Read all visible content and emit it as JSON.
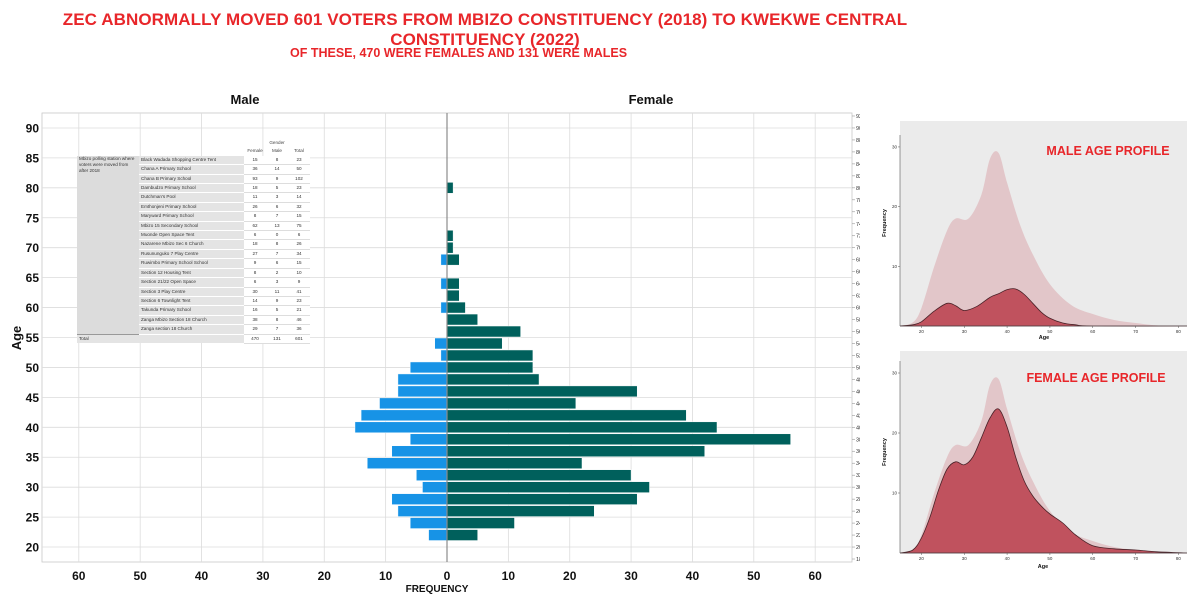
{
  "title": "ZEC ABNORMALLY MOVED 601 VOTERS FROM MBIZO CONSTITUENCY (2018) TO KWEKWE CENTRAL CONSTITUENCY (2022)",
  "subtitle": "OF THESE, 470 WERE FEMALES AND 131 WERE MALES",
  "colors": {
    "headline": "#e8262a",
    "male_bar": "#1793e6",
    "female_bar": "#00605c",
    "profile_fill": "#c0525e",
    "profile_light": "#e2c6c9",
    "panel_bg": "#ebebeb"
  },
  "stations_table": {
    "group_header": "Gender",
    "columns": [
      "Female",
      "Male",
      "Total"
    ],
    "side_label": "Mbizo polling station where voters were moved from after 2018",
    "rows": [
      {
        "name": "Black Wadada Shopping Centre Tent",
        "female": "15",
        "male": "8",
        "total": "23"
      },
      {
        "name": "Chana A Primary School",
        "female": "36",
        "male": "14",
        "total": "50"
      },
      {
        "name": "Chana B Primary School",
        "female": "93",
        "male": "9",
        "total": "102"
      },
      {
        "name": "Dambudzo Primary School",
        "female": "18",
        "male": "5",
        "total": "23"
      },
      {
        "name": "Dutchman's Pool",
        "female": "11",
        "male": "3",
        "total": "14"
      },
      {
        "name": "Emthonjeni Primary School",
        "female": "26",
        "male": "6",
        "total": "32"
      },
      {
        "name": "Maryward Primary School",
        "female": "8",
        "male": "7",
        "total": "15"
      },
      {
        "name": "Mbizo 15 Secondary School",
        "female": "62",
        "male": "13",
        "total": "75"
      },
      {
        "name": "Muonde Open Space Tent",
        "female": "6",
        "male": "0",
        "total": "6"
      },
      {
        "name": "Nazarene Mbizo Sec 6 Church",
        "female": "18",
        "male": "8",
        "total": "26"
      },
      {
        "name": "Rusununguko 7 Play Centre",
        "female": "27",
        "male": "7",
        "total": "34"
      },
      {
        "name": "Ruwimbo Primary School School",
        "female": "9",
        "male": "6",
        "total": "15"
      },
      {
        "name": "Section 12 Housing Tent",
        "female": "8",
        "male": "2",
        "total": "10"
      },
      {
        "name": "Section 21/22 Open Space",
        "female": "6",
        "male": "3",
        "total": "9"
      },
      {
        "name": "Section 3 Play Centre",
        "female": "30",
        "male": "11",
        "total": "41"
      },
      {
        "name": "Section 6 Townlight Tent",
        "female": "14",
        "male": "9",
        "total": "23"
      },
      {
        "name": "Takunda Primary School",
        "female": "16",
        "male": "5",
        "total": "21"
      },
      {
        "name": "Zanga Mbizo Section 18 Church",
        "female": "38",
        "male": "8",
        "total": "46"
      },
      {
        "name": "Zanga section 18 Church",
        "female": "29",
        "male": "7",
        "total": "36"
      }
    ],
    "total_label": "Total",
    "totals": {
      "female": "470",
      "male": "131",
      "total": "601"
    }
  },
  "chart_data": [
    {
      "type": "bar",
      "orientation": "horizontal-back-to-back",
      "title": "",
      "left_label": "Male",
      "right_label": "Female",
      "xlabel": "FREQUENCY",
      "ylabel": "Age",
      "xlim": [
        -66,
        66
      ],
      "ylim": [
        17.5,
        92.5
      ],
      "x_ticks": [
        60,
        50,
        40,
        30,
        20,
        10,
        0,
        10,
        20,
        30,
        40,
        50,
        60
      ],
      "y_ticks": [
        20,
        25,
        30,
        35,
        40,
        45,
        50,
        55,
        60,
        65,
        70,
        75,
        80,
        85,
        90
      ],
      "right_ticks": [
        18,
        20,
        22,
        24,
        26,
        28,
        30,
        32,
        34,
        36,
        38,
        40,
        42,
        44,
        46,
        48,
        50,
        52,
        54,
        56,
        58,
        60,
        62,
        64,
        66,
        68,
        70,
        72,
        74,
        76,
        78,
        80,
        82,
        84,
        86,
        88,
        90,
        92
      ],
      "grid": true,
      "ages": [
        22,
        24,
        26,
        28,
        30,
        32,
        34,
        36,
        38,
        40,
        42,
        44,
        46,
        48,
        50,
        52,
        54,
        56,
        58,
        60,
        62,
        64,
        66,
        68,
        70,
        72,
        80
      ],
      "series": [
        {
          "name": "Male",
          "values": [
            3,
            6,
            8,
            9,
            4,
            5,
            13,
            9,
            6,
            15,
            14,
            11,
            8,
            8,
            6,
            1,
            2,
            0,
            0,
            1,
            0,
            1,
            0,
            1,
            0,
            0,
            0
          ]
        },
        {
          "name": "Female",
          "values": [
            5,
            11,
            24,
            31,
            33,
            30,
            22,
            42,
            56,
            44,
            39,
            21,
            31,
            15,
            14,
            14,
            9,
            12,
            5,
            3,
            2,
            2,
            0,
            2,
            1,
            1,
            1
          ]
        }
      ]
    },
    {
      "type": "area",
      "title": "MALE AGE PROFILE",
      "xlabel": "Age",
      "ylabel": "Frequency",
      "xlim": [
        15,
        82
      ],
      "ylim": [
        0,
        32
      ],
      "x_ticks": [
        20,
        30,
        40,
        50,
        60,
        70,
        80
      ],
      "y_ticks": [
        10,
        20,
        30
      ],
      "background_series": {
        "x": [
          15,
          18,
          20,
          23,
          26,
          28,
          31,
          34,
          36,
          38,
          40,
          43,
          46,
          50,
          55,
          60,
          65,
          70,
          75,
          82
        ],
        "y": [
          0,
          0.6,
          3,
          10,
          16,
          18,
          18,
          22,
          28,
          29,
          24,
          17,
          12,
          7,
          3.5,
          2,
          1,
          0.5,
          0.1,
          0
        ]
      },
      "foreground_series": {
        "x": [
          15,
          18,
          20,
          23,
          26,
          28,
          30,
          33,
          36,
          38,
          40,
          42,
          44,
          46,
          48,
          50,
          53,
          56,
          60,
          82
        ],
        "y": [
          0,
          0.2,
          0.7,
          2.5,
          3.8,
          3.4,
          2.6,
          3.3,
          4.8,
          5.4,
          6.1,
          6.2,
          5.3,
          3.8,
          2.3,
          1.3,
          0.5,
          0.2,
          0,
          0
        ]
      }
    },
    {
      "type": "area",
      "title": "FEMALE AGE PROFILE",
      "xlabel": "Age",
      "ylabel": "Frequency",
      "xlim": [
        15,
        82
      ],
      "ylim": [
        0,
        32
      ],
      "x_ticks": [
        20,
        30,
        40,
        50,
        60,
        70,
        80
      ],
      "y_ticks": [
        10,
        20,
        30
      ],
      "background_series": {
        "x": [
          15,
          18,
          20,
          23,
          26,
          28,
          31,
          34,
          36,
          38,
          40,
          43,
          46,
          50,
          55,
          60,
          65,
          70,
          75,
          82
        ],
        "y": [
          0,
          0.6,
          3,
          10,
          16,
          18,
          18,
          22,
          28,
          29,
          24,
          17,
          12,
          7,
          3.5,
          2,
          1,
          0.5,
          0.1,
          0
        ]
      },
      "foreground_series": {
        "x": [
          15,
          18,
          20,
          22,
          24,
          26,
          28,
          30,
          32,
          34,
          36,
          38,
          40,
          42,
          44,
          46,
          48,
          50,
          53,
          56,
          60,
          65,
          70,
          75,
          82
        ],
        "y": [
          0,
          0.5,
          2.5,
          6,
          10.5,
          14,
          15.2,
          14.7,
          16,
          19.2,
          22.5,
          24,
          21,
          16,
          12,
          9.5,
          7.8,
          6.5,
          5,
          3,
          1.2,
          0.7,
          0.5,
          0.2,
          0
        ]
      }
    }
  ]
}
